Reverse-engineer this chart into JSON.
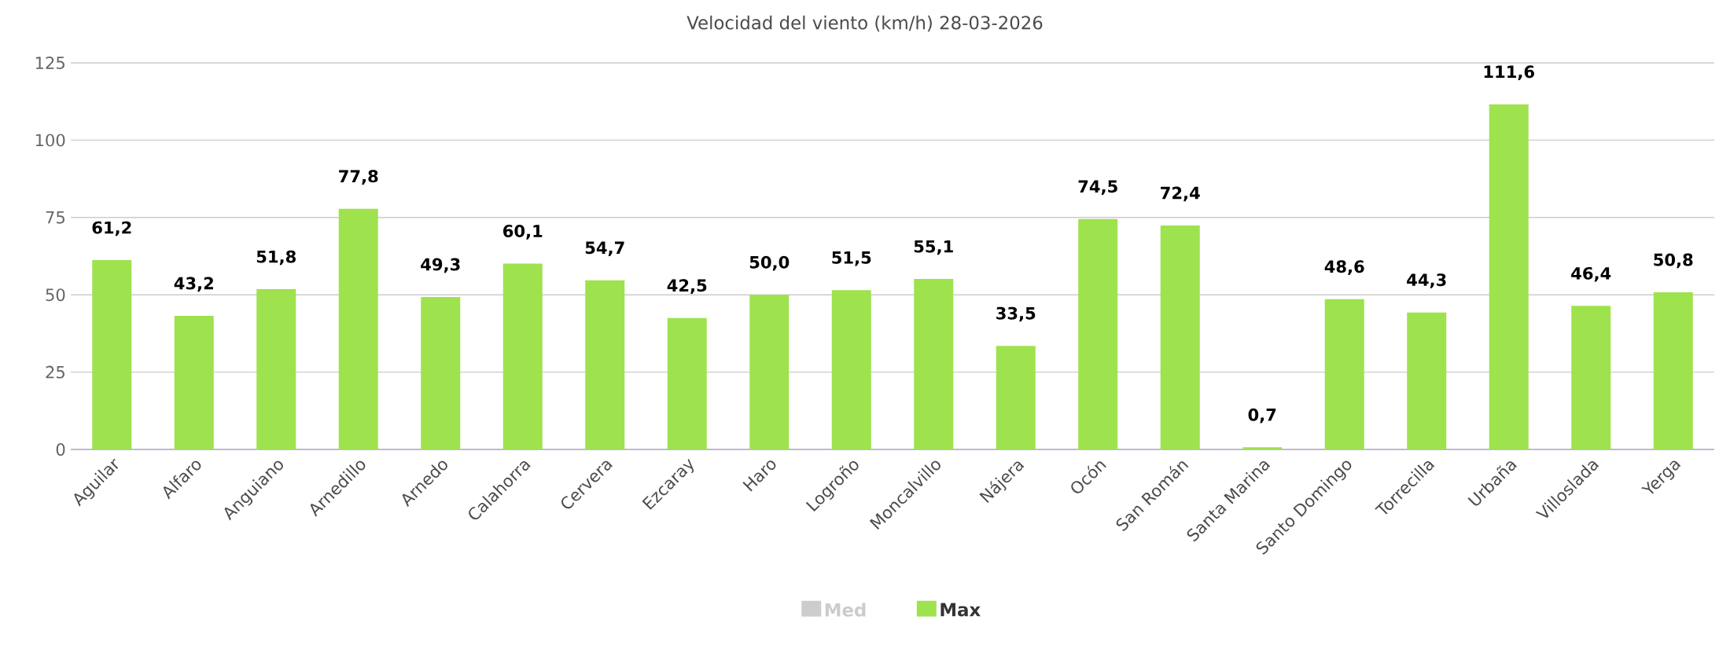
{
  "chart_data": {
    "type": "bar",
    "title": "Velocidad del viento (km/h) 28-03-2026",
    "categories": [
      "Aguilar",
      "Alfaro",
      "Anguiano",
      "Arnedillo",
      "Arnedo",
      "Calahorra",
      "Cervera",
      "Ezcaray",
      "Haro",
      "Logroño",
      "Moncalvillo",
      "Nájera",
      "Ocón",
      "San Román",
      "Santa Marina",
      "Santo Domingo",
      "Torrecilla",
      "Urbaña",
      "Villoslada",
      "Yerga"
    ],
    "series": [
      {
        "name": "Med",
        "color": "#cccccc",
        "values": [
          null,
          null,
          null,
          null,
          null,
          null,
          null,
          null,
          null,
          null,
          null,
          null,
          null,
          null,
          null,
          null,
          null,
          null,
          null,
          null
        ]
      },
      {
        "name": "Max",
        "color": "#9ee24e",
        "values": [
          61.2,
          43.2,
          51.8,
          77.8,
          49.3,
          60.1,
          54.7,
          42.5,
          50.0,
          51.5,
          55.1,
          33.5,
          74.5,
          72.4,
          0.7,
          48.6,
          44.3,
          111.6,
          46.4,
          50.8
        ],
        "value_labels": [
          "61,2",
          "43,2",
          "51,8",
          "77,8",
          "49,3",
          "60,1",
          "54,7",
          "42,5",
          "50,0",
          "51,5",
          "55,1",
          "33,5",
          "74,5",
          "72,4",
          "0,7",
          "48,6",
          "44,3",
          "111,6",
          "46,4",
          "50,8"
        ]
      }
    ],
    "ylim": [
      0,
      125
    ],
    "yticks": [
      0,
      25,
      50,
      75,
      100,
      125
    ],
    "grid": "y",
    "legend": "bottom"
  }
}
